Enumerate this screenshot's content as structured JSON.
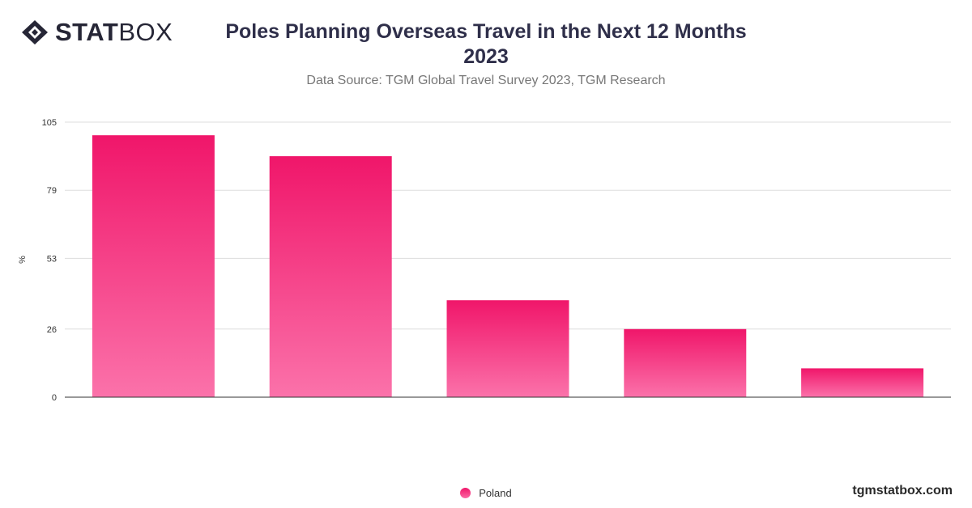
{
  "logo": {
    "bold": "STAT",
    "light": "BOX"
  },
  "header": {
    "title_line1": "Poles Planning Overseas Travel in the Next 12 Months",
    "title_line2": "2023",
    "subtitle": "Data Source: TGM Global Travel Survey 2023, TGM Research"
  },
  "chart_data": {
    "type": "bar",
    "categories": [
      "",
      "",
      "",
      "",
      ""
    ],
    "series": [
      {
        "name": "Poland",
        "values": [
          100,
          92,
          37,
          26,
          11
        ]
      }
    ],
    "ylabel": "%",
    "ylim": [
      0,
      105
    ],
    "yticks": [
      0,
      26,
      53,
      79,
      105
    ],
    "grid": true,
    "legend_position": "bottom-center",
    "colors": {
      "bar_top": "#f0166a",
      "bar_bottom": "#fb72aa",
      "grid": "#dddddd",
      "axis": "#333333"
    }
  },
  "legend": {
    "label": "Poland"
  },
  "watermark": "tgmstatbox.com"
}
